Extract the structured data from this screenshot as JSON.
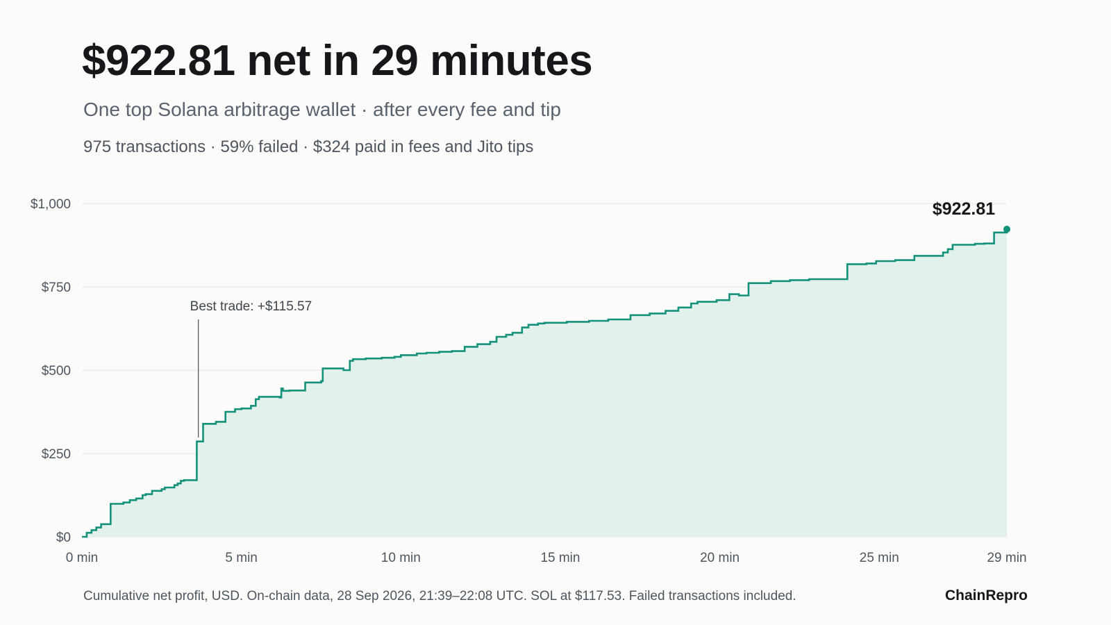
{
  "header": {
    "title": "$922.81 net in 29 minutes",
    "subtitle": "One top Solana arbitrage wallet · after every fee and tip",
    "stats": "975 transactions · 59% failed · $324 paid in fees and Jito tips"
  },
  "footer": {
    "note": "Cumulative net profit, USD. On-chain data, 28 Sep 2026, 21:39–22:08 UTC. SOL at $117.53. Failed transactions included.",
    "brand": "ChainRepro"
  },
  "colors": {
    "line": "#13917a",
    "area": "#e2f1ec",
    "grid": "#e6e6e3",
    "end_dot": "#13917a"
  },
  "chart_data": {
    "type": "area",
    "step": true,
    "x_unit": "min",
    "xlim": [
      0,
      29
    ],
    "ylim": [
      0,
      1000
    ],
    "grid": true,
    "y_ticks": [
      0,
      250,
      500,
      750,
      1000
    ],
    "y_tick_labels": [
      "$0",
      "$250",
      "$500",
      "$750",
      "$1,000"
    ],
    "x_ticks": [
      0,
      5,
      10,
      15,
      20,
      25,
      29
    ],
    "x_tick_labels": [
      "0 min",
      "5 min",
      "10 min",
      "15 min",
      "20 min",
      "25 min",
      "29 min"
    ],
    "series": [
      {
        "x": [
          0,
          0.15,
          0.3,
          0.45,
          0.6,
          0.9,
          1.3,
          1.5,
          1.7,
          1.9,
          2.0,
          2.2,
          2.5,
          2.6,
          2.9,
          3.0,
          3.1,
          3.2,
          3.35,
          3.6,
          3.65,
          3.8,
          4.2,
          4.5,
          4.8,
          5.0,
          5.3,
          5.45,
          5.55,
          6.2,
          6.25,
          6.3,
          6.5,
          7.0,
          7.5,
          7.55,
          8.2,
          8.4,
          8.5,
          8.9,
          9.4,
          9.8,
          10.0,
          10.5,
          10.8,
          11.2,
          11.6,
          12.0,
          12.4,
          12.8,
          13.0,
          13.3,
          13.5,
          13.8,
          14.0,
          14.3,
          14.5,
          15.2,
          15.9,
          16.5,
          17.2,
          17.8,
          18.3,
          18.7,
          19.1,
          19.3,
          19.9,
          20.3,
          20.6,
          20.9,
          21.6,
          22.2,
          22.8,
          24.0,
          24.6,
          24.9,
          25.5,
          26.1,
          27.0,
          27.15,
          27.3,
          28.0,
          28.3,
          28.6
        ],
        "y": [
          0,
          12,
          20,
          28,
          38,
          99,
          103,
          110,
          115,
          125,
          128,
          138,
          143,
          148,
          155,
          160,
          168,
          170,
          170,
          286,
          286,
          339,
          345,
          375,
          383,
          385,
          393,
          413,
          420,
          418,
          445,
          438,
          439,
          463,
          467,
          505,
          500,
          528,
          533,
          535,
          537,
          540,
          545,
          550,
          552,
          555,
          557,
          570,
          578,
          585,
          600,
          606,
          612,
          628,
          636,
          640,
          642,
          645,
          648,
          652,
          665,
          670,
          678,
          688,
          700,
          705,
          710,
          728,
          724,
          761,
          767,
          770,
          773,
          818,
          820,
          827,
          830,
          843,
          853,
          863,
          876,
          879,
          880,
          913
        ]
      }
    ],
    "end_value": 922.81,
    "end_label": "$922.81",
    "annotation": {
      "label": "Best trade: +$115.57",
      "x": 3.65
    }
  }
}
